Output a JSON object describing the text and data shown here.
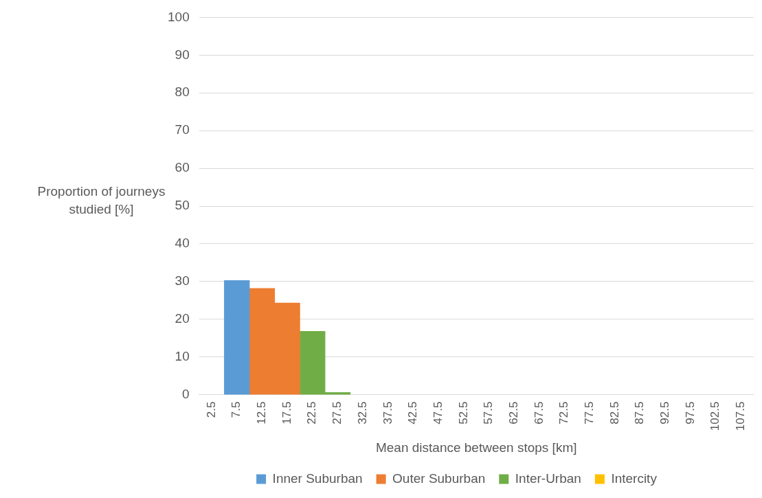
{
  "chart_data": {
    "type": "bar",
    "stacked": true,
    "xlabel": "Mean distance between stops [km]",
    "ylabel": "Proportion of journeys studied [%]",
    "categories": [
      "2.5",
      "7.5",
      "12.5",
      "17.5",
      "22.5",
      "27.5",
      "32.5",
      "37.5",
      "42.5",
      "47.5",
      "52.5",
      "57.5",
      "62.5",
      "67.5",
      "72.5",
      "77.5",
      "82.5",
      "87.5",
      "92.5",
      "97.5",
      "102.5",
      "107.5"
    ],
    "series": [
      {
        "name": "Inner Suburban",
        "color": "#5b9bd5",
        "values": [
          null,
          30.3,
          null,
          null,
          null,
          null,
          null,
          null,
          null,
          null,
          null,
          null,
          null,
          null,
          null,
          null,
          null,
          null,
          null,
          null,
          null,
          null
        ]
      },
      {
        "name": "Outer Suburban",
        "color": "#ed7d31",
        "values": [
          null,
          null,
          28.2,
          24.3,
          null,
          null,
          null,
          null,
          null,
          null,
          null,
          null,
          null,
          null,
          null,
          null,
          null,
          null,
          null,
          null,
          null,
          null
        ]
      },
      {
        "name": "Inter-Urban",
        "color": "#70ad47",
        "values": [
          null,
          null,
          null,
          null,
          16.8,
          0.6,
          null,
          null,
          null,
          null,
          null,
          null,
          null,
          null,
          null,
          null,
          null,
          null,
          null,
          null,
          null,
          null
        ]
      },
      {
        "name": "Intercity",
        "color": "#ffc000",
        "values": [
          null,
          null,
          null,
          null,
          null,
          null,
          null,
          null,
          null,
          null,
          null,
          null,
          null,
          null,
          null,
          null,
          null,
          null,
          null,
          null,
          null,
          null
        ]
      }
    ],
    "ylim": [
      0,
      100
    ],
    "yticks": [
      0,
      10,
      20,
      30,
      40,
      50,
      60,
      70,
      80,
      90,
      100
    ],
    "grid": "y",
    "legend": "bottom"
  }
}
